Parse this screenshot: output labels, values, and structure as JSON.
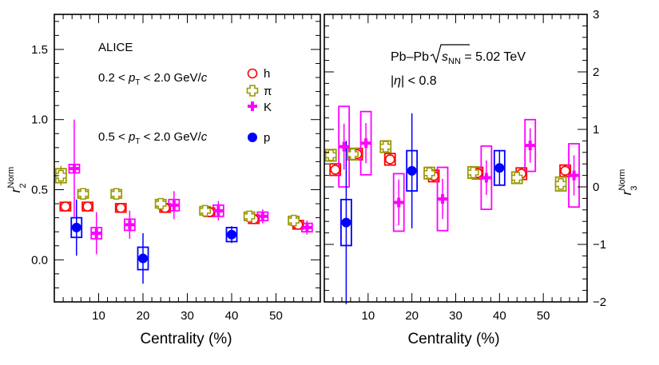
{
  "chart_data": [
    {
      "type": "scatter",
      "panel": "left",
      "xlabel": "Centrality (%)",
      "ylabel": "r_2^Norm",
      "xlim": [
        0,
        60
      ],
      "ylim": [
        -0.3,
        1.75
      ],
      "x_ticks": [
        10,
        20,
        30,
        40,
        50
      ],
      "y_ticks": [
        0.0,
        0.5,
        1.0,
        1.5
      ],
      "y_tick_labels": [
        "0.0",
        "0.5",
        "1.0",
        "1.5"
      ],
      "labels": {
        "experiment": "ALICE",
        "range1": "0.2 < p_T < 2.0 GeV/c",
        "range2": "0.5 < p_T < 2.0 GeV/c"
      },
      "legend": [
        "h",
        "π",
        "K",
        "p"
      ],
      "series": [
        {
          "name": "h",
          "color": "#ff0000",
          "marker": "open-circle",
          "x": [
            2.5,
            7.5,
            15,
            25,
            35,
            45,
            55
          ],
          "y": [
            0.38,
            0.38,
            0.37,
            0.37,
            0.34,
            0.29,
            0.25
          ],
          "yerr": [
            0.02,
            0.02,
            0.02,
            0.02,
            0.02,
            0.02,
            0.02
          ],
          "syst": [
            0.03,
            0.03,
            0.03,
            0.03,
            0.03,
            0.03,
            0.03
          ]
        },
        {
          "name": "π",
          "color": "#999900",
          "marker": "open-cross",
          "x": [
            1.5,
            6.5,
            14,
            24,
            34,
            44,
            54
          ],
          "y": [
            0.6,
            0.47,
            0.47,
            0.4,
            0.35,
            0.31,
            0.28
          ],
          "yerr": [
            0.07,
            0.03,
            0.02,
            0.02,
            0.02,
            0.02,
            0.02
          ],
          "syst": [
            0.05,
            0.03,
            0.03,
            0.03,
            0.03,
            0.03,
            0.03
          ]
        },
        {
          "name": "K",
          "color": "#ff00ff",
          "marker": "filled-cross",
          "x": [
            4.5,
            9.5,
            17,
            27,
            37,
            47,
            57
          ],
          "y": [
            0.65,
            0.19,
            0.25,
            0.39,
            0.35,
            0.31,
            0.23
          ],
          "yerr": [
            0.35,
            0.15,
            0.1,
            0.1,
            0.07,
            0.05,
            0.05
          ],
          "syst": [
            0.03,
            0.04,
            0.04,
            0.04,
            0.04,
            0.03,
            0.03
          ]
        },
        {
          "name": "p",
          "color": "#0000ff",
          "marker": "filled-circle",
          "x": [
            5,
            20,
            40
          ],
          "y": [
            0.23,
            0.01,
            0.18
          ],
          "yerr": [
            0.2,
            0.18,
            0.06
          ],
          "syst": [
            0.07,
            0.08,
            0.05
          ]
        }
      ]
    },
    {
      "type": "scatter",
      "panel": "right",
      "xlabel": "Centrality (%)",
      "ylabel": "r_3^Norm",
      "xlim": [
        0,
        60
      ],
      "ylim": [
        -2,
        3
      ],
      "x_ticks": [
        10,
        20,
        30,
        40,
        50
      ],
      "y_ticks": [
        -2,
        -1,
        0,
        1,
        2,
        3
      ],
      "y_tick_labels": [
        "−2",
        "−1",
        "0",
        "1",
        "2",
        "3"
      ],
      "labels": {
        "system": "Pb–Pb √s_NN = 5.02 TeV",
        "eta": "|η| < 0.8"
      },
      "series": [
        {
          "name": "h",
          "color": "#ff0000",
          "marker": "open-circle",
          "x": [
            2.5,
            7.5,
            15,
            25,
            35,
            45,
            55
          ],
          "y": [
            0.3,
            0.57,
            0.48,
            0.19,
            0.24,
            0.23,
            0.28
          ],
          "yerr": [
            0.05,
            0.05,
            0.05,
            0.05,
            0.05,
            0.05,
            0.06
          ],
          "syst": [
            0.1,
            0.1,
            0.1,
            0.1,
            0.1,
            0.1,
            0.1
          ]
        },
        {
          "name": "π",
          "color": "#999900",
          "marker": "open-cross",
          "x": [
            1.5,
            6.5,
            14,
            24,
            34,
            44,
            54
          ],
          "y": [
            0.55,
            0.57,
            0.7,
            0.24,
            0.25,
            0.16,
            0.05
          ],
          "yerr": [
            0.08,
            0.08,
            0.08,
            0.08,
            0.08,
            0.08,
            0.1
          ],
          "syst": [
            0.1,
            0.1,
            0.1,
            0.1,
            0.1,
            0.1,
            0.12
          ]
        },
        {
          "name": "K",
          "color": "#ff00ff",
          "marker": "filled-cross",
          "x": [
            4.5,
            9.5,
            17,
            27,
            37,
            47,
            57
          ],
          "y": [
            0.7,
            0.76,
            -0.27,
            -0.21,
            0.16,
            0.72,
            0.2
          ],
          "yerr": [
            0.4,
            0.35,
            0.4,
            0.35,
            0.3,
            0.3,
            0.35
          ],
          "syst": [
            0.7,
            0.55,
            0.5,
            0.55,
            0.55,
            0.45,
            0.55
          ]
        },
        {
          "name": "p",
          "color": "#0000ff",
          "marker": "filled-circle",
          "x": [
            5,
            20,
            40
          ],
          "y": [
            -0.62,
            0.28,
            0.33
          ],
          "yerr": [
            1.42,
            1.0,
            0.3
          ],
          "syst": [
            0.4,
            0.35,
            0.3
          ]
        }
      ]
    }
  ]
}
